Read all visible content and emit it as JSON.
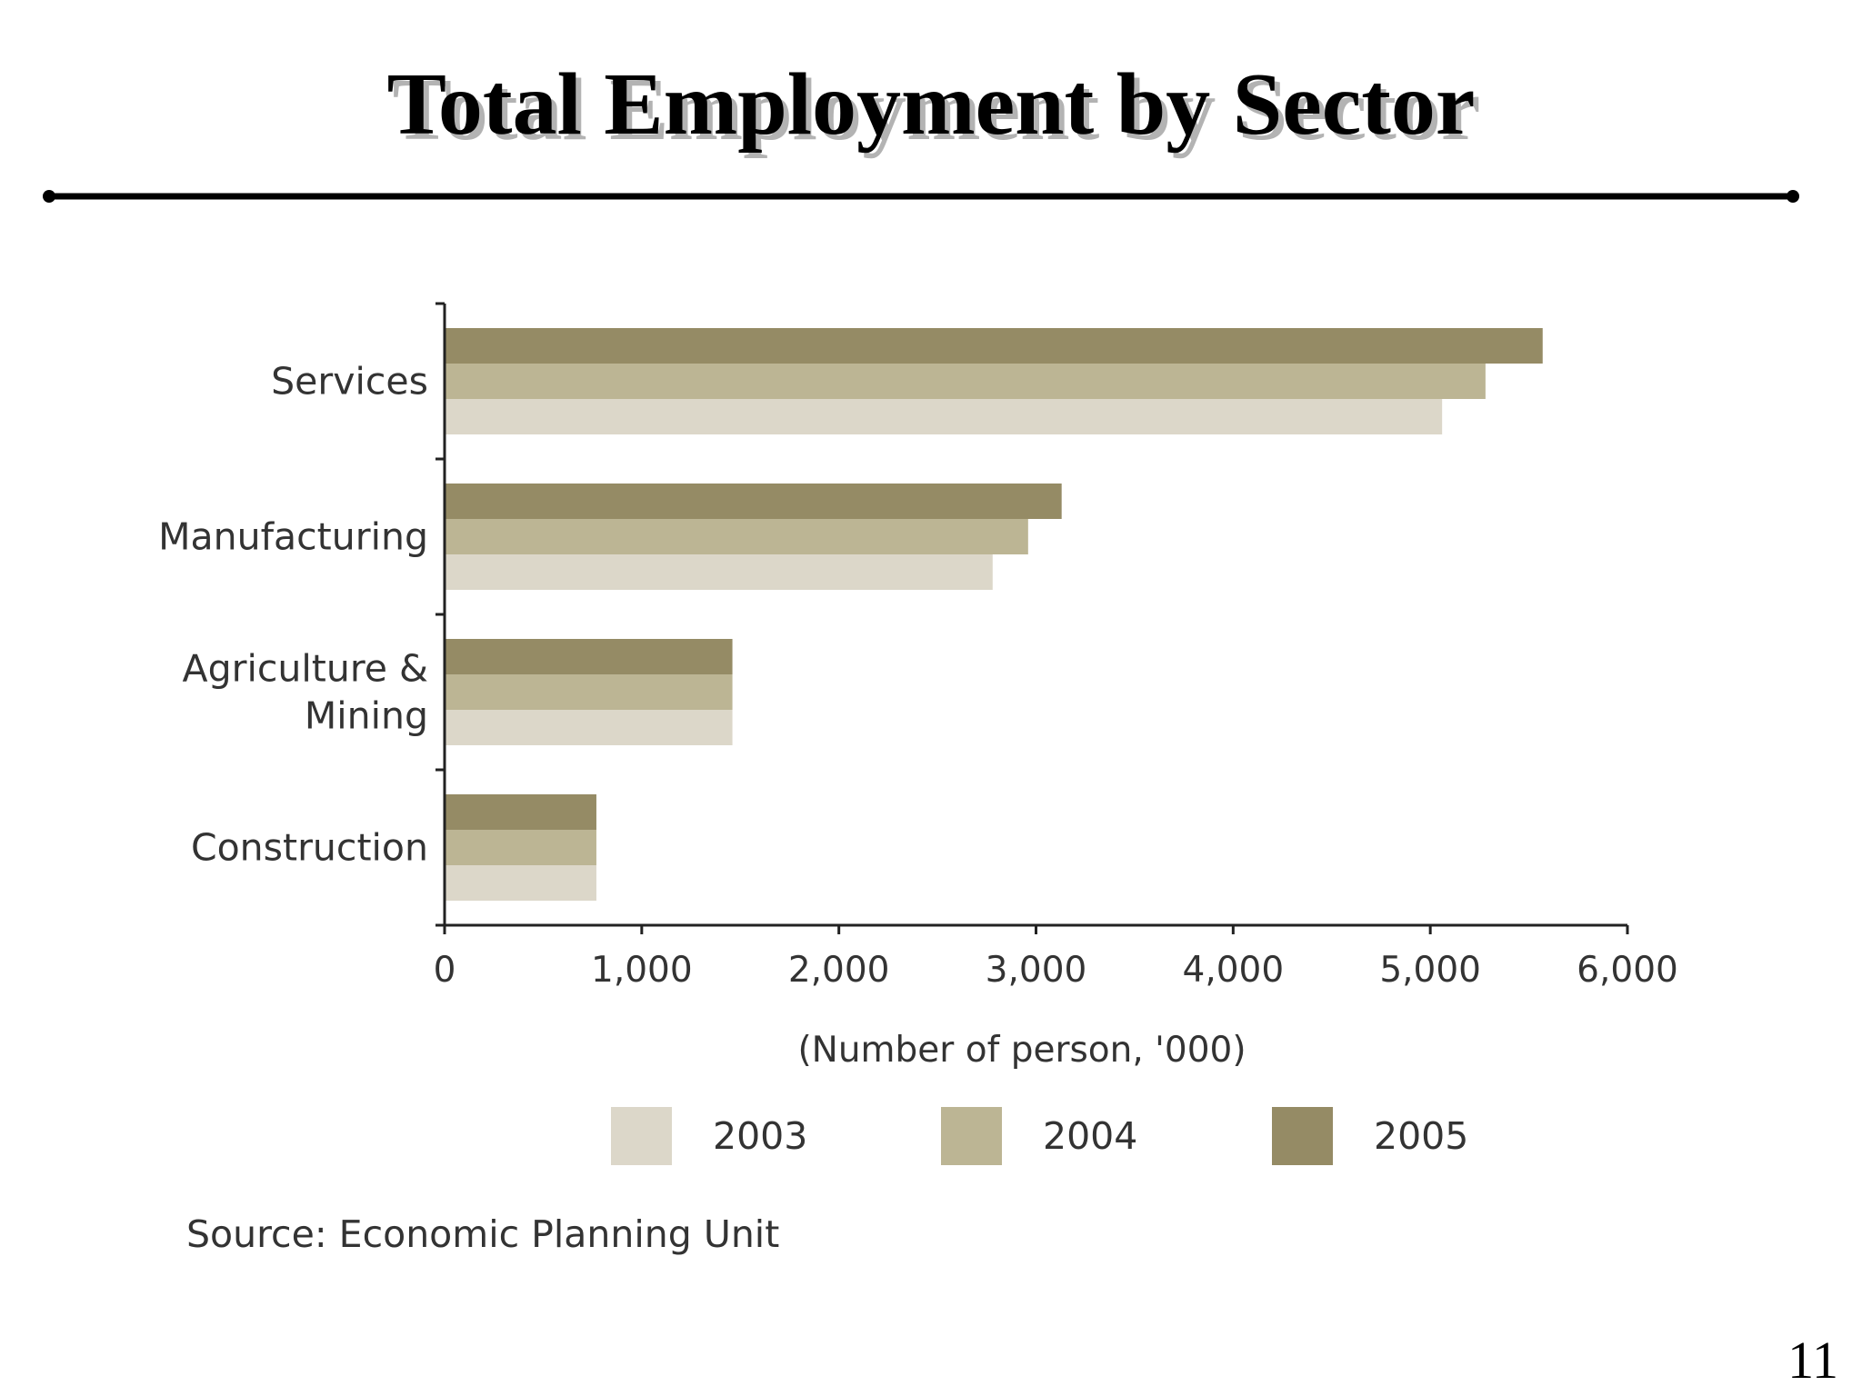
{
  "slide": {
    "title": "Total Employment by Sector",
    "page_number": "11"
  },
  "chart_data": {
    "type": "bar",
    "orientation": "horizontal",
    "categories": [
      "Services",
      "Manufacturing",
      "Agriculture & Mining",
      "Construction"
    ],
    "category_label_lines": [
      [
        "Services"
      ],
      [
        "Manufacturing"
      ],
      [
        "Agriculture &",
        "Mining"
      ],
      [
        "Construction"
      ]
    ],
    "series": [
      {
        "name": "2003",
        "values": [
          5060,
          2780,
          1460,
          770
        ],
        "color": "#dcd7c9"
      },
      {
        "name": "2004",
        "values": [
          5280,
          2960,
          1460,
          770
        ],
        "color": "#bcb594"
      },
      {
        "name": "2005",
        "values": [
          5570,
          3130,
          1460,
          770
        ],
        "color": "#958b65"
      }
    ],
    "xlim": [
      0,
      6000
    ],
    "x_ticks": [
      0,
      1000,
      2000,
      3000,
      4000,
      5000,
      6000
    ],
    "x_tick_labels": [
      "0",
      "1,000",
      "2,000",
      "3,000",
      "4,000",
      "5,000",
      "6,000"
    ],
    "xlabel": "(Number of person, '000)",
    "ylabel": "",
    "legend_position": "bottom",
    "grid": false,
    "source_note": "Source: Economic Planning Unit"
  }
}
